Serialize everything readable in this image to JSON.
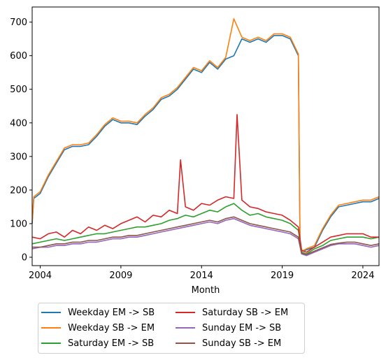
{
  "chart_data": {
    "type": "line",
    "xlabel": "Month",
    "ylabel": "",
    "title": "",
    "xlim": [
      2003.5,
      2025.0
    ],
    "ylim": [
      -25,
      745
    ],
    "x_ticks": [
      2004,
      2009,
      2014,
      2019,
      2024
    ],
    "y_ticks": [
      0,
      100,
      200,
      300,
      400,
      500,
      600,
      700
    ],
    "grid": false,
    "legend_position": "below-left",
    "series": [
      {
        "name": "Weekday EM -> SB",
        "color": "#1f77b4",
        "x": [
          2003.5,
          2003.6,
          2004.0,
          2004.5,
          2005.0,
          2005.5,
          2006.0,
          2006.5,
          2007.0,
          2007.5,
          2008.0,
          2008.5,
          2009.0,
          2009.5,
          2010.0,
          2010.5,
          2011.0,
          2011.5,
          2012.0,
          2012.5,
          2013.0,
          2013.5,
          2014.0,
          2014.5,
          2015.0,
          2015.5,
          2016.0,
          2016.5,
          2017.0,
          2017.5,
          2018.0,
          2018.5,
          2019.0,
          2019.5,
          2020.0,
          2020.1,
          2020.2,
          2020.3,
          2020.5,
          2021.0,
          2021.5,
          2022.0,
          2022.5,
          2023.0,
          2023.5,
          2024.0,
          2024.5,
          2025.0
        ],
        "y": [
          100,
          175,
          190,
          240,
          280,
          320,
          330,
          330,
          335,
          360,
          390,
          410,
          400,
          400,
          395,
          420,
          440,
          470,
          480,
          500,
          530,
          560,
          550,
          580,
          560,
          590,
          600,
          650,
          640,
          650,
          640,
          660,
          660,
          650,
          600,
          50,
          20,
          18,
          22,
          30,
          80,
          120,
          150,
          155,
          160,
          165,
          165,
          175
        ]
      },
      {
        "name": "Weekday SB -> EM",
        "color": "#ff7f0e",
        "x": [
          2003.5,
          2003.6,
          2004.0,
          2004.5,
          2005.0,
          2005.5,
          2006.0,
          2006.5,
          2007.0,
          2007.5,
          2008.0,
          2008.5,
          2009.0,
          2009.5,
          2010.0,
          2010.5,
          2011.0,
          2011.5,
          2012.0,
          2012.5,
          2013.0,
          2013.5,
          2014.0,
          2014.5,
          2015.0,
          2015.5,
          2016.0,
          2016.5,
          2017.0,
          2017.5,
          2018.0,
          2018.5,
          2019.0,
          2019.5,
          2020.0,
          2020.1,
          2020.2,
          2020.3,
          2020.5,
          2021.0,
          2021.5,
          2022.0,
          2022.5,
          2023.0,
          2023.5,
          2024.0,
          2024.5,
          2025.0
        ],
        "y": [
          105,
          180,
          195,
          245,
          285,
          325,
          335,
          335,
          340,
          365,
          395,
          415,
          405,
          405,
          400,
          425,
          445,
          475,
          485,
          505,
          535,
          565,
          555,
          585,
          565,
          595,
          710,
          655,
          645,
          655,
          645,
          665,
          665,
          655,
          605,
          55,
          22,
          20,
          25,
          35,
          85,
          125,
          155,
          160,
          165,
          170,
          170,
          180
        ]
      },
      {
        "name": "Saturday EM -> SB",
        "color": "#2ca02c",
        "x": [
          2003.5,
          2004.0,
          2004.5,
          2005.0,
          2005.5,
          2006.0,
          2006.5,
          2007.0,
          2007.5,
          2008.0,
          2008.5,
          2009.0,
          2009.5,
          2010.0,
          2010.5,
          2011.0,
          2011.5,
          2012.0,
          2012.5,
          2013.0,
          2013.5,
          2014.0,
          2014.5,
          2015.0,
          2015.5,
          2016.0,
          2016.5,
          2017.0,
          2017.5,
          2018.0,
          2018.5,
          2019.0,
          2019.5,
          2020.0,
          2020.2,
          2020.5,
          2021.0,
          2021.5,
          2022.0,
          2022.5,
          2023.0,
          2023.5,
          2024.0,
          2024.5,
          2025.0
        ],
        "y": [
          40,
          45,
          50,
          55,
          50,
          55,
          60,
          65,
          70,
          70,
          75,
          80,
          85,
          90,
          90,
          95,
          100,
          110,
          115,
          125,
          120,
          130,
          140,
          135,
          150,
          160,
          140,
          125,
          130,
          120,
          115,
          110,
          100,
          80,
          15,
          10,
          25,
          35,
          50,
          55,
          60,
          60,
          60,
          55,
          60
        ]
      },
      {
        "name": "Saturday SB -> EM",
        "color": "#d62728",
        "x": [
          2003.5,
          2004.0,
          2004.5,
          2005.0,
          2005.5,
          2006.0,
          2006.5,
          2007.0,
          2007.5,
          2008.0,
          2008.5,
          2009.0,
          2009.5,
          2010.0,
          2010.5,
          2011.0,
          2011.5,
          2012.0,
          2012.5,
          2012.7,
          2013.0,
          2013.5,
          2014.0,
          2014.5,
          2015.0,
          2015.5,
          2016.0,
          2016.2,
          2016.5,
          2017.0,
          2017.5,
          2018.0,
          2018.5,
          2019.0,
          2019.5,
          2020.0,
          2020.2,
          2020.5,
          2021.0,
          2021.5,
          2022.0,
          2022.5,
          2023.0,
          2023.5,
          2024.0,
          2024.5,
          2025.0
        ],
        "y": [
          60,
          55,
          70,
          75,
          60,
          80,
          70,
          90,
          80,
          95,
          85,
          100,
          110,
          120,
          105,
          125,
          120,
          140,
          130,
          290,
          150,
          140,
          160,
          155,
          170,
          180,
          175,
          425,
          170,
          150,
          145,
          135,
          130,
          125,
          110,
          90,
          20,
          15,
          30,
          45,
          60,
          65,
          70,
          70,
          70,
          60,
          60
        ]
      },
      {
        "name": "Sunday EM -> SB",
        "color": "#9467bd",
        "x": [
          2003.5,
          2004.0,
          2004.5,
          2005.0,
          2005.5,
          2006.0,
          2006.5,
          2007.0,
          2007.5,
          2008.0,
          2008.5,
          2009.0,
          2009.5,
          2010.0,
          2010.5,
          2011.0,
          2011.5,
          2012.0,
          2012.5,
          2013.0,
          2013.5,
          2014.0,
          2014.5,
          2015.0,
          2015.5,
          2016.0,
          2016.5,
          2017.0,
          2017.5,
          2018.0,
          2018.5,
          2019.0,
          2019.5,
          2020.0,
          2020.2,
          2020.5,
          2021.0,
          2021.5,
          2022.0,
          2022.5,
          2023.0,
          2023.5,
          2024.0,
          2024.5,
          2025.0
        ],
        "y": [
          25,
          30,
          30,
          35,
          35,
          40,
          40,
          45,
          45,
          50,
          55,
          55,
          60,
          60,
          65,
          70,
          75,
          80,
          85,
          90,
          95,
          100,
          105,
          100,
          110,
          115,
          105,
          95,
          90,
          85,
          80,
          75,
          70,
          55,
          10,
          5,
          15,
          25,
          35,
          40,
          40,
          40,
          35,
          30,
          35
        ]
      },
      {
        "name": "Sunday SB -> EM",
        "color": "#8c564b",
        "x": [
          2003.5,
          2004.0,
          2004.5,
          2005.0,
          2005.5,
          2006.0,
          2006.5,
          2007.0,
          2007.5,
          2008.0,
          2008.5,
          2009.0,
          2009.5,
          2010.0,
          2010.5,
          2011.0,
          2011.5,
          2012.0,
          2012.5,
          2013.0,
          2013.5,
          2014.0,
          2014.5,
          2015.0,
          2015.5,
          2016.0,
          2016.5,
          2017.0,
          2017.5,
          2018.0,
          2018.5,
          2019.0,
          2019.5,
          2020.0,
          2020.2,
          2020.5,
          2021.0,
          2021.5,
          2022.0,
          2022.5,
          2023.0,
          2023.5,
          2024.0,
          2024.5,
          2025.0
        ],
        "y": [
          30,
          30,
          35,
          40,
          40,
          45,
          45,
          50,
          50,
          55,
          60,
          60,
          65,
          65,
          70,
          75,
          80,
          85,
          90,
          95,
          100,
          105,
          110,
          105,
          115,
          120,
          110,
          100,
          95,
          90,
          85,
          80,
          75,
          60,
          12,
          8,
          18,
          28,
          38,
          42,
          45,
          45,
          40,
          35,
          40
        ]
      }
    ]
  }
}
